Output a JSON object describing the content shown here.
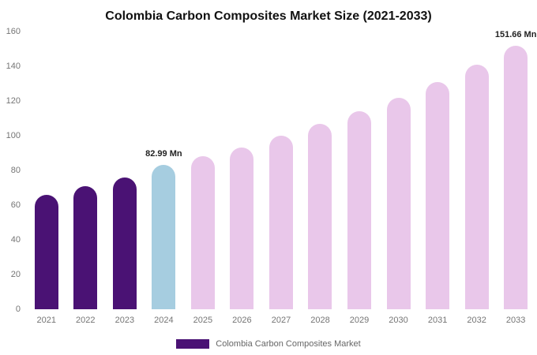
{
  "chart_data": {
    "type": "bar",
    "title": "Colombia Carbon Composites Market Size (2021-2033)",
    "categories": [
      "2021",
      "2022",
      "2023",
      "2024",
      "2025",
      "2026",
      "2027",
      "2028",
      "2029",
      "2030",
      "2031",
      "2032",
      "2033"
    ],
    "values": [
      66,
      71,
      76,
      82.99,
      88,
      93,
      100,
      107,
      114,
      122,
      131,
      141,
      151.66
    ],
    "bar_colors": [
      "#4a1274",
      "#4a1274",
      "#4a1274",
      "#a6cde0",
      "#e9c7ea",
      "#e9c7ea",
      "#e9c7ea",
      "#e9c7ea",
      "#e9c7ea",
      "#e9c7ea",
      "#e9c7ea",
      "#e9c7ea",
      "#e9c7ea"
    ],
    "annotations": [
      {
        "index": 3,
        "text": "82.99 Mn"
      },
      {
        "index": 12,
        "text": "151.66 Mn"
      }
    ],
    "xlabel": "",
    "ylabel": "",
    "ylim": [
      0,
      160
    ],
    "yticks": [
      0,
      20,
      40,
      60,
      80,
      100,
      120,
      140,
      160
    ],
    "grid": false,
    "legend_position": "bottom",
    "legend": "Colombia Carbon Composites Market",
    "colors": {
      "historical": "#4a1274",
      "current_year": "#a6cde0",
      "forecast": "#e9c7ea",
      "axis_text": "#757575"
    }
  }
}
